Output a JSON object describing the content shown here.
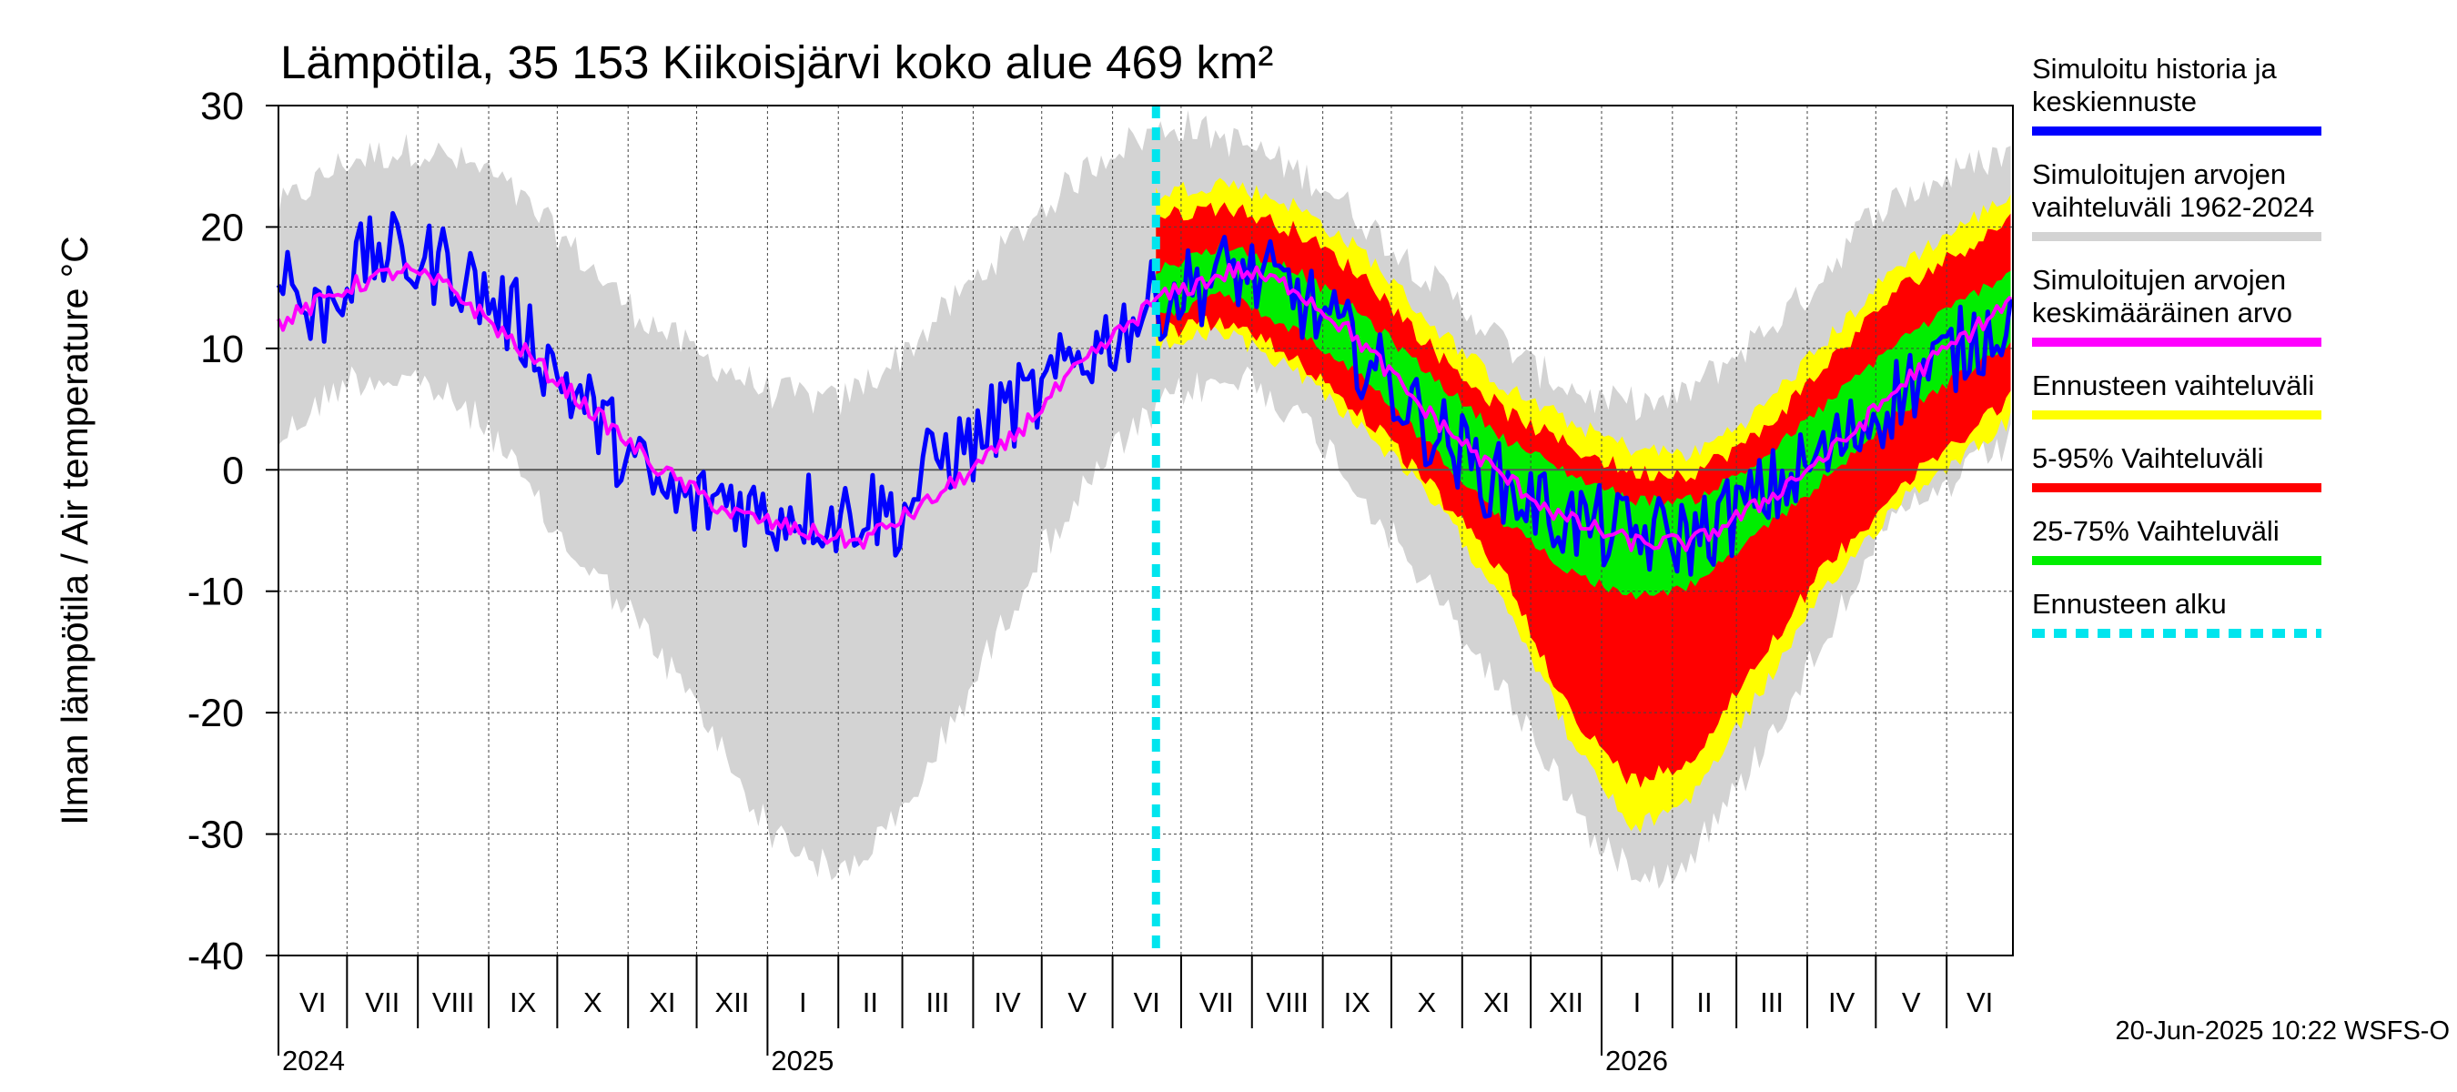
{
  "chart_data": {
    "type": "area",
    "title": "Lämpötila, 35 153 Kiikoisjärvi koko alue 469 km²",
    "ylabel": "Ilman lämpötila / Air temperature    °C",
    "ylim": [
      -40,
      30
    ],
    "yticks": [
      "30",
      "20",
      "10",
      "0",
      "-10",
      "-20",
      "-30",
      "-40"
    ],
    "x_range": [
      "2024-06-01",
      "2026-06-30"
    ],
    "forecast_start": "2025-06-20",
    "months": [
      "VI",
      "VII",
      "VIII",
      "IX",
      "X",
      "XI",
      "XII",
      "I",
      "II",
      "III",
      "IV",
      "V",
      "VI",
      "VII",
      "VIII",
      "IX",
      "X",
      "XI",
      "XII",
      "I",
      "II",
      "III",
      "IV",
      "V",
      "VI"
    ],
    "years": [
      {
        "label": "2024",
        "date": "2024-06-01"
      },
      {
        "label": "2025",
        "date": "2025-01-01"
      },
      {
        "label": "2026",
        "date": "2026-01-01"
      }
    ],
    "grid": true,
    "legend_position": "right",
    "legend": [
      {
        "label_lines": [
          "Simuloitu historia ja",
          "keskiennuste"
        ],
        "color": "#0000ff",
        "style": "solid"
      },
      {
        "label_lines": [
          "Simuloitujen arvojen",
          "vaihteluväli 1962-2024"
        ],
        "color": "#d3d3d3",
        "style": "solid"
      },
      {
        "label_lines": [
          "Simuloitujen arvojen",
          "keskimääräinen arvo"
        ],
        "color": "#ff00ff",
        "style": "solid"
      },
      {
        "label_lines": [
          "Ennusteen vaihteluväli"
        ],
        "color": "#ffff00",
        "style": "solid"
      },
      {
        "label_lines": [
          "5-95% Vaihteluväli"
        ],
        "color": "#ff0000",
        "style": "solid"
      },
      {
        "label_lines": [
          "25-75% Vaihteluväli"
        ],
        "color": "#00ee00",
        "style": "solid"
      },
      {
        "label_lines": [
          "Ennusteen alku"
        ],
        "color": "#00e5ee",
        "style": "dashed"
      }
    ],
    "series": [
      {
        "name": "Simuloitujen arvojen keskimääräinen arvo",
        "color": "#ff00ff",
        "points": [
          [
            "2024-06-01",
            12
          ],
          [
            "2024-07-01",
            15
          ],
          [
            "2024-07-25",
            16.5
          ],
          [
            "2024-08-15",
            15
          ],
          [
            "2024-09-15",
            10
          ],
          [
            "2024-10-15",
            5
          ],
          [
            "2024-11-15",
            0
          ],
          [
            "2024-12-15",
            -3.5
          ],
          [
            "2025-01-15",
            -5
          ],
          [
            "2025-02-10",
            -6
          ],
          [
            "2025-03-10",
            -3
          ],
          [
            "2025-04-15",
            2
          ],
          [
            "2025-05-15",
            8
          ],
          [
            "2025-06-20",
            14
          ],
          [
            "2025-07-25",
            16.5
          ],
          [
            "2025-08-20",
            15
          ],
          [
            "2025-09-15",
            11
          ],
          [
            "2025-10-15",
            5
          ],
          [
            "2025-11-15",
            0
          ],
          [
            "2025-12-15",
            -4
          ],
          [
            "2026-01-15",
            -6
          ],
          [
            "2026-02-10",
            -6
          ],
          [
            "2026-03-10",
            -3
          ],
          [
            "2026-04-15",
            2
          ],
          [
            "2026-05-15",
            7.5
          ],
          [
            "2026-06-30",
            14
          ]
        ]
      },
      {
        "name": "Simuloitu historia ja keskiennuste",
        "color": "#0000ff",
        "points": [
          [
            "2024-06-01",
            18
          ],
          [
            "2024-06-15",
            12
          ],
          [
            "2024-07-01",
            16
          ],
          [
            "2024-07-15",
            18
          ],
          [
            "2024-08-01",
            17
          ],
          [
            "2024-08-15",
            17
          ],
          [
            "2024-09-01",
            14
          ],
          [
            "2024-09-15",
            12
          ],
          [
            "2024-10-01",
            8
          ],
          [
            "2024-10-15",
            5
          ],
          [
            "2024-11-01",
            1
          ],
          [
            "2024-11-15",
            -2
          ],
          [
            "2024-12-01",
            -3
          ],
          [
            "2024-12-15",
            -2
          ],
          [
            "2025-01-01",
            -4
          ],
          [
            "2025-01-15",
            -3
          ],
          [
            "2025-02-01",
            -4
          ],
          [
            "2025-02-15",
            -3
          ],
          [
            "2025-03-01",
            -4
          ],
          [
            "2025-03-15",
            1
          ],
          [
            "2025-04-01",
            2
          ],
          [
            "2025-04-15",
            5
          ],
          [
            "2025-05-01",
            6
          ],
          [
            "2025-05-15",
            9
          ],
          [
            "2025-06-01",
            11
          ],
          [
            "2025-06-20",
            14
          ],
          [
            "2025-07-25",
            16.5
          ],
          [
            "2025-08-20",
            14.5
          ],
          [
            "2025-09-15",
            10
          ],
          [
            "2025-10-15",
            4
          ],
          [
            "2025-11-15",
            -1
          ],
          [
            "2025-12-15",
            -4
          ],
          [
            "2026-01-15",
            -5.5
          ],
          [
            "2026-02-10",
            -5.5
          ],
          [
            "2026-03-10",
            -2.5
          ],
          [
            "2026-04-15",
            2
          ],
          [
            "2026-05-15",
            7
          ],
          [
            "2026-06-30",
            13
          ]
        ]
      },
      {
        "name": "Simuloitujen arvojen vaihteluväli 1962-2024",
        "color": "#d3d3d3",
        "points": [
          [
            "2024-06-01",
            4,
            20
          ],
          [
            "2024-07-01",
            9,
            24
          ],
          [
            "2024-08-01",
            9,
            25
          ],
          [
            "2024-09-01",
            5,
            23
          ],
          [
            "2024-10-01",
            -4,
            18
          ],
          [
            "2024-11-01",
            -10,
            12
          ],
          [
            "2024-12-01",
            -18,
            8
          ],
          [
            "2025-01-01",
            -28,
            5
          ],
          [
            "2025-02-01",
            -32,
            4
          ],
          [
            "2025-03-01",
            -27,
            8
          ],
          [
            "2025-04-01",
            -16,
            14
          ],
          [
            "2025-05-01",
            -5,
            20
          ],
          [
            "2025-06-01",
            3,
            25
          ],
          [
            "2025-07-01",
            8,
            27
          ],
          [
            "2025-08-01",
            9,
            25
          ],
          [
            "2025-09-01",
            4,
            22
          ],
          [
            "2025-10-01",
            -4,
            17
          ],
          [
            "2025-11-01",
            -12,
            12
          ],
          [
            "2025-12-01",
            -20,
            7
          ],
          [
            "2026-01-01",
            -30,
            4
          ],
          [
            "2026-02-01",
            -32,
            4
          ],
          [
            "2026-03-01",
            -25,
            8
          ],
          [
            "2026-04-01",
            -15,
            13
          ],
          [
            "2026-05-01",
            -4,
            20
          ],
          [
            "2026-06-30",
            4,
            25
          ]
        ]
      },
      {
        "name": "Ennusteen vaihteluväli",
        "color": "#ffff00",
        "points": [
          [
            "2025-06-20",
            11,
            22
          ],
          [
            "2025-07-20",
            12,
            23
          ],
          [
            "2025-08-20",
            9,
            21
          ],
          [
            "2025-09-20",
            4,
            17
          ],
          [
            "2025-10-20",
            -2,
            11
          ],
          [
            "2025-11-20",
            -10,
            6
          ],
          [
            "2025-12-20",
            -22,
            3
          ],
          [
            "2026-01-15",
            -29,
            1
          ],
          [
            "2026-02-10",
            -26,
            0.5
          ],
          [
            "2026-03-10",
            -18,
            4
          ],
          [
            "2026-04-10",
            -9,
            10
          ],
          [
            "2026-05-10",
            -2,
            16
          ],
          [
            "2026-06-30",
            5,
            22
          ]
        ]
      },
      {
        "name": "5-95% Vaihteluväli",
        "color": "#ff0000",
        "points": [
          [
            "2025-06-20",
            12,
            20
          ],
          [
            "2025-07-20",
            13,
            21
          ],
          [
            "2025-08-20",
            10,
            19
          ],
          [
            "2025-09-20",
            5,
            15
          ],
          [
            "2025-10-20",
            -1,
            9
          ],
          [
            "2025-11-20",
            -8,
            4
          ],
          [
            "2025-12-20",
            -20,
            1
          ],
          [
            "2026-01-15",
            -25,
            -1
          ],
          [
            "2026-02-10",
            -23,
            -1
          ],
          [
            "2026-03-10",
            -15,
            2
          ],
          [
            "2026-04-10",
            -7,
            8
          ],
          [
            "2026-05-10",
            -1,
            14
          ],
          [
            "2026-06-30",
            7,
            20
          ]
        ]
      },
      {
        "name": "25-75% Vaihteluväli",
        "color": "#00ee00",
        "points": [
          [
            "2025-06-20",
            13,
            16
          ],
          [
            "2025-07-20",
            15,
            18
          ],
          [
            "2025-08-20",
            12,
            16
          ],
          [
            "2025-09-20",
            8,
            12
          ],
          [
            "2025-10-20",
            2,
            7
          ],
          [
            "2025-11-20",
            -4,
            2
          ],
          [
            "2025-12-20",
            -8,
            -1
          ],
          [
            "2026-01-15",
            -10,
            -3
          ],
          [
            "2026-02-10",
            -9,
            -3
          ],
          [
            "2026-03-10",
            -5,
            0
          ],
          [
            "2026-04-10",
            0,
            5
          ],
          [
            "2026-05-10",
            5,
            10
          ],
          [
            "2026-06-30",
            11,
            16
          ]
        ]
      }
    ],
    "footer": "20-Jun-2025 10:22 WSFS-O"
  }
}
